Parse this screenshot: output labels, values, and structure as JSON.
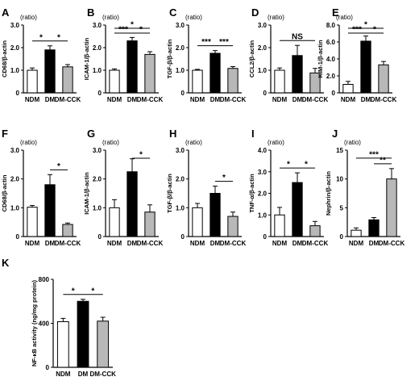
{
  "chart_data": [
    {
      "id": "A",
      "type": "bar",
      "unit": "(ratio)",
      "ylabel": "CD68/β-actin",
      "categories": [
        "NDM",
        "DM",
        "DM-CCK"
      ],
      "values": [
        1.0,
        1.9,
        1.15
      ],
      "errors": [
        0.1,
        0.18,
        0.1
      ],
      "ylim": [
        0,
        3
      ],
      "yticks": [
        0,
        1.0,
        2.0,
        3.0
      ],
      "annotations": [
        {
          "from": 0,
          "to": 1,
          "text": "*"
        },
        {
          "from": 1,
          "to": 2,
          "text": "*"
        }
      ]
    },
    {
      "id": "B",
      "type": "bar",
      "unit": "(ratio)",
      "ylabel": "ICAM-1/β-actin",
      "categories": [
        "NDM",
        "DM",
        "DM-CCK"
      ],
      "values": [
        1.0,
        2.3,
        1.7
      ],
      "errors": [
        0.06,
        0.15,
        0.12
      ],
      "ylim": [
        0,
        3
      ],
      "yticks": [
        0,
        1.0,
        2.0,
        3.0
      ],
      "annotations": [
        {
          "from": 0,
          "to": 2,
          "text": "*"
        },
        {
          "from": 0,
          "to": 1,
          "text": "***"
        },
        {
          "from": 1,
          "to": 2,
          "text": "*"
        }
      ]
    },
    {
      "id": "C",
      "type": "bar",
      "unit": "(ratio)",
      "ylabel": "TGF-β/β-actin",
      "categories": [
        "NDM",
        "DM",
        "DM-CCK"
      ],
      "values": [
        1.0,
        1.75,
        1.08
      ],
      "errors": [
        0.04,
        0.12,
        0.08
      ],
      "ylim": [
        0,
        3
      ],
      "yticks": [
        0,
        1.0,
        2.0,
        3.0
      ],
      "annotations": [
        {
          "from": 0,
          "to": 1,
          "text": "***"
        },
        {
          "from": 1,
          "to": 2,
          "text": "***"
        }
      ]
    },
    {
      "id": "D",
      "type": "bar",
      "unit": "(ratio)",
      "ylabel": "CCL2/β-actin",
      "categories": [
        "NDM",
        "DM",
        "DM-CCK"
      ],
      "values": [
        1.0,
        1.65,
        0.88
      ],
      "errors": [
        0.1,
        0.45,
        0.2
      ],
      "ylim": [
        0,
        3
      ],
      "yticks": [
        0,
        1.0,
        2.0,
        3.0
      ],
      "annotations": [
        {
          "from": 0,
          "to": 2,
          "text": "NS"
        }
      ]
    },
    {
      "id": "E",
      "type": "bar",
      "unit": "(ratio)",
      "ylabel": "KIM-1/β-actin",
      "categories": [
        "NDM",
        "DM",
        "DM-CCK"
      ],
      "values": [
        1.0,
        6.1,
        3.3
      ],
      "errors": [
        0.35,
        0.6,
        0.4
      ],
      "ylim": [
        0,
        8
      ],
      "yticks": [
        0,
        2.0,
        4.0,
        6.0,
        8.0
      ],
      "annotations": [
        {
          "from": 0,
          "to": 2,
          "text": "*"
        },
        {
          "from": 0,
          "to": 1,
          "text": "***"
        },
        {
          "from": 1,
          "to": 2,
          "text": "*"
        }
      ]
    },
    {
      "id": "F",
      "type": "bar",
      "unit": "(ratio)",
      "ylabel": "CD68/β-actin",
      "categories": [
        "NDM",
        "DM",
        "DM-CCK"
      ],
      "values": [
        1.02,
        1.8,
        0.42
      ],
      "errors": [
        0.06,
        0.35,
        0.05
      ],
      "ylim": [
        0,
        3
      ],
      "yticks": [
        0,
        1.0,
        2.0,
        3.0
      ],
      "annotations": [
        {
          "from": 1,
          "to": 2,
          "text": "*"
        }
      ]
    },
    {
      "id": "G",
      "type": "bar",
      "unit": "(ratio)",
      "ylabel": "ICAM-1/β-actin",
      "categories": [
        "NDM",
        "DM",
        "DM-CCK"
      ],
      "values": [
        1.0,
        2.25,
        0.85
      ],
      "errors": [
        0.28,
        0.45,
        0.25
      ],
      "ylim": [
        0,
        3
      ],
      "yticks": [
        0,
        1.0,
        2.0,
        3.0
      ],
      "annotations": [
        {
          "from": 1,
          "to": 2,
          "text": "*"
        }
      ]
    },
    {
      "id": "H",
      "type": "bar",
      "unit": "(ratio)",
      "ylabel": "TGF-β/β-actin",
      "categories": [
        "NDM",
        "DM",
        "DM-CCK"
      ],
      "values": [
        1.0,
        1.5,
        0.7
      ],
      "errors": [
        0.15,
        0.25,
        0.15
      ],
      "ylim": [
        0,
        3
      ],
      "yticks": [
        0,
        1.0,
        2.0,
        3.0
      ],
      "annotations": [
        {
          "from": 1,
          "to": 2,
          "text": "*"
        }
      ]
    },
    {
      "id": "I",
      "type": "bar",
      "unit": "(ratio)",
      "ylabel": "TNF-α/β-actin",
      "categories": [
        "NDM",
        "DM",
        "DM-CCK"
      ],
      "values": [
        1.0,
        2.5,
        0.5
      ],
      "errors": [
        0.35,
        0.45,
        0.2
      ],
      "ylim": [
        0,
        4
      ],
      "yticks": [
        0,
        1.0,
        2.0,
        3.0,
        4.0
      ],
      "annotations": [
        {
          "from": 0,
          "to": 1,
          "text": "*"
        },
        {
          "from": 1,
          "to": 2,
          "text": "*"
        }
      ]
    },
    {
      "id": "J",
      "type": "bar",
      "unit": "(ratio)",
      "ylabel": "Nephrin/β-actin",
      "categories": [
        "NDM",
        "DM",
        "DM-CCK"
      ],
      "values": [
        1.1,
        2.9,
        10.0
      ],
      "errors": [
        0.4,
        0.4,
        1.8
      ],
      "ylim": [
        0,
        15
      ],
      "yticks": [
        0,
        5,
        10,
        15
      ],
      "annotations": [
        {
          "from": 0,
          "to": 2,
          "text": "***"
        },
        {
          "from": 1,
          "to": 2,
          "text": "**"
        }
      ]
    },
    {
      "id": "K",
      "type": "bar",
      "unit": "",
      "ylabel": "NF-κB activity (ng/mg protein)",
      "categories": [
        "NDM",
        "DM",
        "DM-CCK"
      ],
      "values": [
        415,
        600,
        420
      ],
      "errors": [
        30,
        18,
        35
      ],
      "ylim": [
        0,
        800
      ],
      "yticks": [
        0,
        400,
        800
      ],
      "annotations": [
        {
          "from": 0,
          "to": 1,
          "text": "*"
        },
        {
          "from": 1,
          "to": 2,
          "text": "*"
        }
      ]
    }
  ],
  "colors": {
    "bars": [
      "#ffffff",
      "#000000",
      "#b8b8b8"
    ],
    "stroke": "#000000"
  }
}
